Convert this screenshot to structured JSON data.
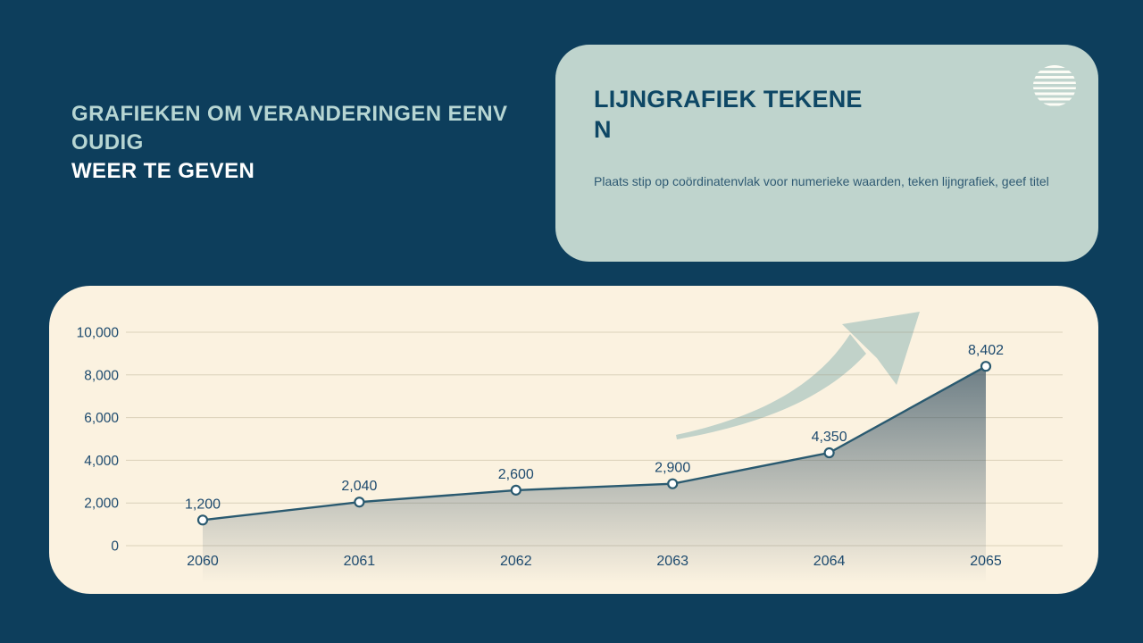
{
  "slide": {
    "heading": {
      "line1": "GRAFIEKEN OM VERANDERINGEN EENV",
      "line2": "OUDIG",
      "line3": "WEER TE GEVEN"
    },
    "card": {
      "title_line1": "LIJNGRAFIEK TEKENE",
      "title_line2": "N",
      "body": "Plaats stip op coördinatenvlak voor numerieke waarden, teken lijngrafiek, geef titel",
      "icon": "striped-sphere-icon"
    }
  },
  "theme": {
    "background": "#0d3e5c",
    "card_bg": "#bfd4cd",
    "panel_bg": "#fbf2e0",
    "heading_pale": "#b7d6d3",
    "heading_white": "#ffffff",
    "card_title_color": "#0e4765",
    "card_body_color": "#2f5a73",
    "axis_text_color": "#1d4a6e",
    "line_color": "#2a5a70",
    "marker_fill": "#ffffff",
    "grid_color": "rgba(151,139,106,0.32)",
    "arrow_color": "#c1d2c9",
    "area_fill_color": "rgb(52,80,98)"
  },
  "chart_data": {
    "type": "line",
    "title": "",
    "xlabel": "",
    "ylabel": "",
    "categories": [
      "2060",
      "2061",
      "2062",
      "2063",
      "2064",
      "2065"
    ],
    "values": [
      1200,
      2040,
      2600,
      2900,
      4350,
      8402
    ],
    "value_labels": [
      "1,200",
      "2,040",
      "2,600",
      "2,900",
      "4,350",
      "8,402"
    ],
    "y_ticks": [
      0,
      2000,
      4000,
      6000,
      8000,
      10000
    ],
    "y_tick_labels": [
      "0",
      "2,000",
      "4,000",
      "6,000",
      "8,000",
      "10,000"
    ],
    "ylim": [
      0,
      10000
    ],
    "grid": true,
    "legend_position": "none",
    "marker": "open-circle",
    "area_fill": "vertical-gradient-slate-to-transparent",
    "annotations": [
      "decorative growth arrow pointing up-right"
    ]
  }
}
